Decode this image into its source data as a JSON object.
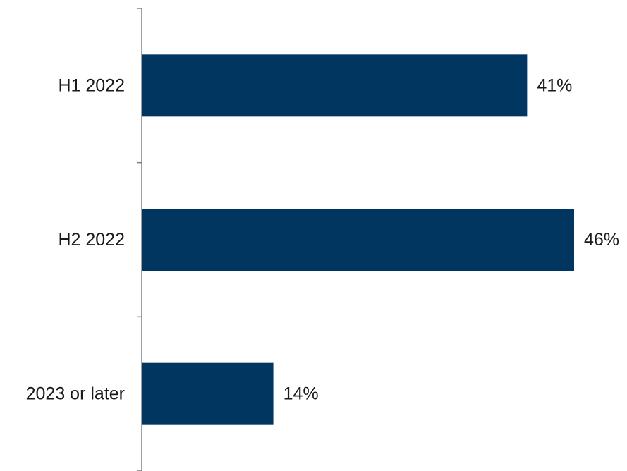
{
  "chart_data": {
    "type": "bar",
    "orientation": "horizontal",
    "categories": [
      "H1 2022",
      "H2 2022",
      "2023 or later"
    ],
    "values": [
      41,
      46,
      14
    ],
    "value_labels": [
      "41%",
      "46%",
      "14%"
    ],
    "unit": "%",
    "title": "",
    "xlabel": "",
    "ylabel": "",
    "xlim": [
      0,
      46
    ],
    "grid": false,
    "legend": "none",
    "bar_color": "#003660",
    "axis_color": "#808080"
  }
}
